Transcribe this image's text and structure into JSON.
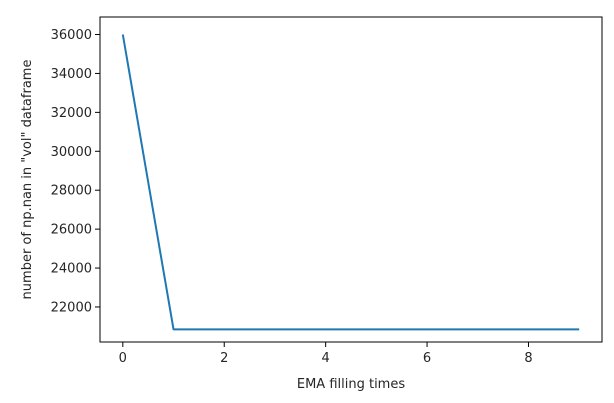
{
  "chart_data": {
    "type": "line",
    "title": "",
    "xlabel": "EMA filling times",
    "ylabel": "number of np.nan in \"vol\" dataframe",
    "xlim": [
      -0.45,
      9.45
    ],
    "ylim": [
      20200,
      36900
    ],
    "x_ticks": [
      0,
      2,
      4,
      6,
      8
    ],
    "y_ticks": [
      22000,
      24000,
      26000,
      28000,
      30000,
      32000,
      34000,
      36000
    ],
    "grid": false,
    "legend": "none",
    "series": [
      {
        "color": "#1f77b4",
        "x": [
          0,
          1,
          2,
          3,
          4,
          5,
          6,
          7,
          8,
          9
        ],
        "y": [
          36000,
          20850,
          20850,
          20850,
          20850,
          20850,
          20850,
          20850,
          20850,
          20850
        ]
      }
    ]
  }
}
